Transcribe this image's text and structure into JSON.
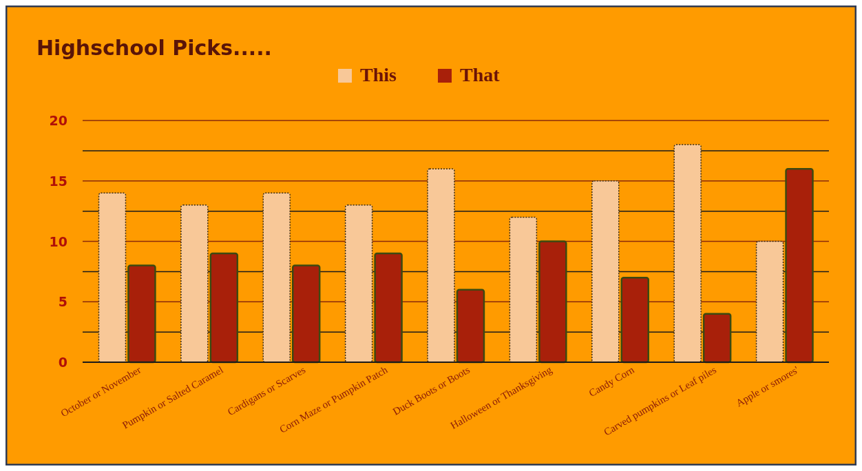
{
  "chart_data": {
    "type": "bar",
    "title": "Highschool Picks.....",
    "categories": [
      "October or November",
      "Pumpkin or Salted Caramel",
      "Cardigans or Scarves",
      "Corn Maze or Pumpkin Patch",
      "Duck Boots or Boots",
      "Halloween or Thanksgiving",
      "Candy Corn",
      "Carved pumpkins or Leaf piles",
      "Apple or smores'"
    ],
    "series": [
      {
        "name": "This",
        "color": "#f8c898",
        "values": [
          14,
          13,
          14,
          13,
          16,
          12,
          15,
          18,
          10
        ]
      },
      {
        "name": "That",
        "color": "#a8200a",
        "values": [
          8,
          9,
          8,
          9,
          6,
          10,
          7,
          4,
          16
        ]
      }
    ],
    "ylim": [
      0,
      20
    ],
    "yticks": [
      0,
      {
        "value": 2.5,
        "label": null
      },
      5,
      {
        "value": 7.5,
        "label": null
      },
      10,
      {
        "value": 12.5,
        "label": null
      },
      15,
      {
        "value": 17.5,
        "label": null
      },
      20
    ],
    "grid": "y",
    "legend": "top"
  }
}
